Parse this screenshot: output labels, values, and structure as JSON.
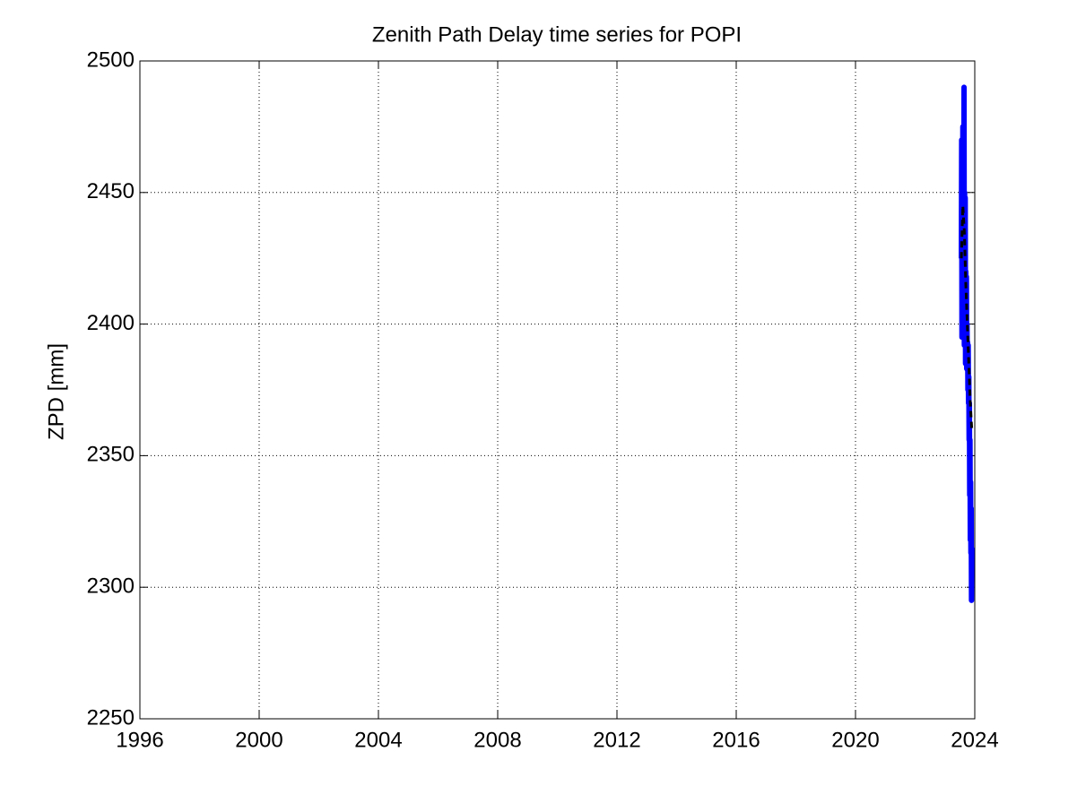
{
  "chart_data": {
    "type": "line",
    "title": "Zenith Path Delay time series for POPI",
    "ylabel": "ZPD [mm]",
    "xlim": [
      1996,
      2024
    ],
    "xticks": [
      1996,
      2000,
      2004,
      2008,
      2012,
      2016,
      2020,
      2024
    ],
    "ylim": [
      2250,
      2500
    ],
    "yticks": [
      2250,
      2300,
      2350,
      2400,
      2450,
      2500
    ],
    "grid": true,
    "series": [
      {
        "color": "#0000ff",
        "dash": false,
        "x": [
          2023.55,
          2023.56,
          2023.57,
          2023.58,
          2023.59,
          2023.6,
          2023.61,
          2023.62,
          2023.63,
          2023.64,
          2023.65,
          2023.66,
          2023.67,
          2023.68,
          2023.69,
          2023.7,
          2023.71,
          2023.72,
          2023.73,
          2023.74,
          2023.75,
          2023.76,
          2023.77,
          2023.78,
          2023.79,
          2023.8,
          2023.81,
          2023.82,
          2023.83,
          2023.84,
          2023.85,
          2023.86,
          2023.87,
          2023.88,
          2023.89,
          2023.9
        ],
        "values": [
          2425,
          2470,
          2395,
          2465,
          2410,
          2475,
          2400,
          2445,
          2395,
          2490,
          2392,
          2450,
          2395,
          2448,
          2385,
          2420,
          2390,
          2418,
          2383,
          2400,
          2385,
          2393,
          2375,
          2392,
          2370,
          2380,
          2356,
          2370,
          2335,
          2356,
          2318,
          2340,
          2313,
          2330,
          2295,
          2315
        ]
      },
      {
        "color": "#000000",
        "dash": true,
        "x": [
          2023.55,
          2023.6,
          2023.65,
          2023.7,
          2023.75,
          2023.8,
          2023.85,
          2023.9
        ],
        "values": [
          2425,
          2445,
          2435,
          2415,
          2400,
          2385,
          2370,
          2360
        ]
      }
    ]
  }
}
